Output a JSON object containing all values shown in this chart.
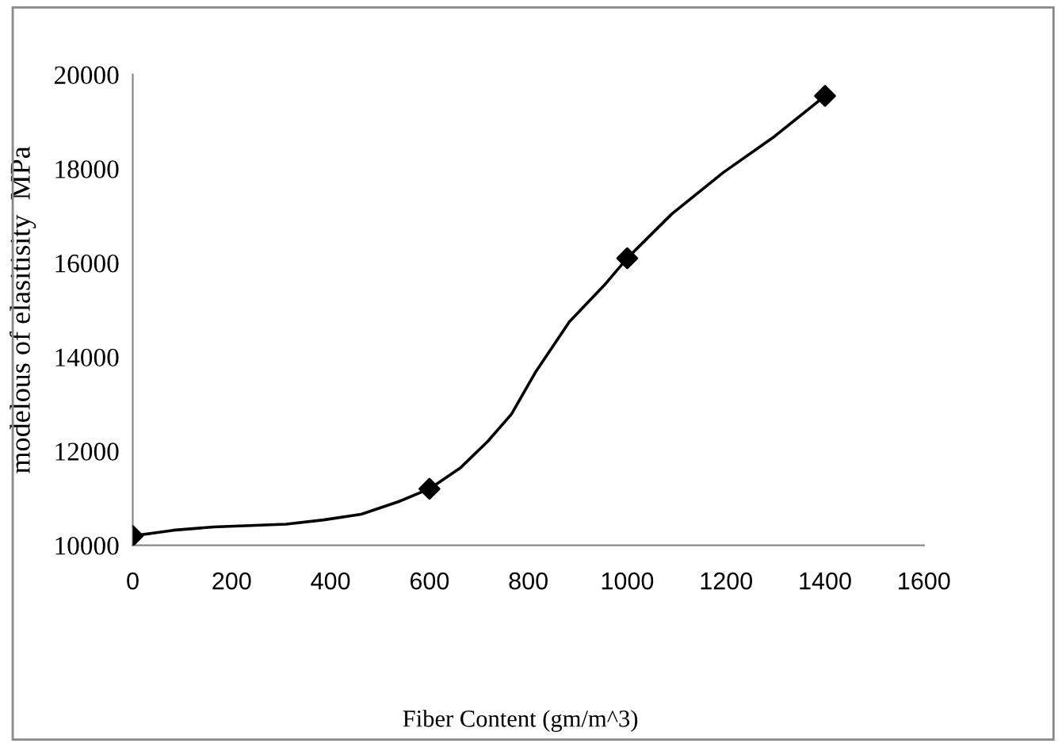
{
  "chart_data": {
    "type": "line",
    "ylabel": "modelous of elasitisity  MPa",
    "annotations": [
      "Fiber Content (gm/m^3)"
    ],
    "series": [
      {
        "color": "#000000",
        "marker": "none",
        "x": [
          0,
          82,
          164,
          310,
          386,
          462,
          538,
          600,
          662,
          718,
          766,
          814,
          883,
          953,
          1000,
          1090,
          1194,
          1298,
          1400
        ],
        "values": [
          10200,
          10320,
          10390,
          10450,
          10540,
          10660,
          10930,
          11200,
          11640,
          12210,
          12790,
          13670,
          14750,
          15520,
          16100,
          17040,
          17920,
          18690,
          19550
        ]
      },
      {
        "type": "scatter",
        "color": "#000000",
        "marker": "diamond",
        "x": [
          0,
          600,
          1000,
          1400
        ],
        "values": [
          10200,
          11200,
          16100,
          19550
        ]
      }
    ],
    "xlim": [
      0,
      1600
    ],
    "xticks": [
      0,
      200,
      400,
      600,
      800,
      1000,
      1200,
      1400,
      1600
    ],
    "ylim": [
      10000,
      20000
    ],
    "yticks": [
      10000,
      12000,
      14000,
      16000,
      18000,
      20000
    ],
    "line_style": "solid",
    "grid": false
  }
}
